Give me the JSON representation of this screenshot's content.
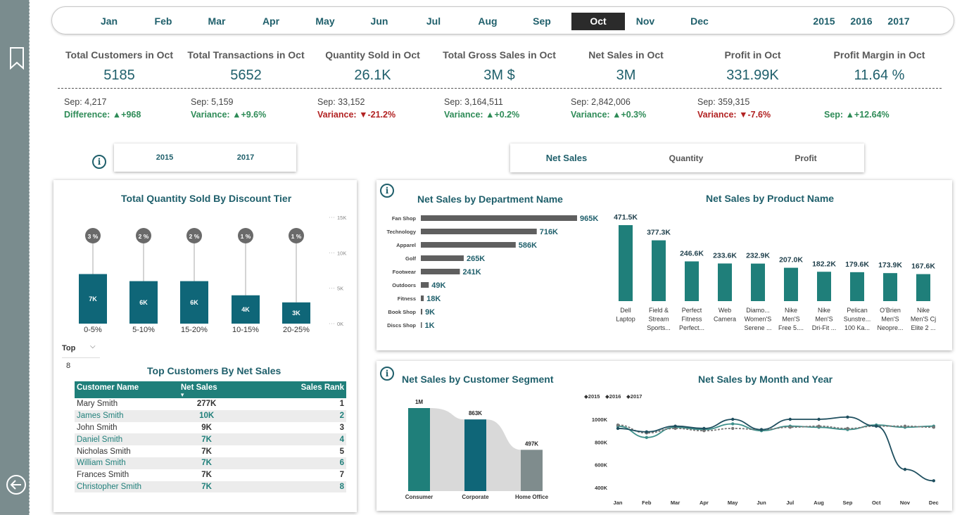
{
  "months": {
    "items": [
      "Jan",
      "Feb",
      "Mar",
      "Apr",
      "May",
      "Jun",
      "Jul",
      "Aug",
      "Sep",
      "Oct",
      "Nov",
      "Dec"
    ],
    "selected": "Oct",
    "years": [
      "2015",
      "2016",
      "2017"
    ]
  },
  "kpis": [
    {
      "label": "Total Customers in Oct",
      "value": "5185",
      "prev": "Sep: 4,217",
      "change_label": "Difference:",
      "change": "▲+968",
      "trend": "pos"
    },
    {
      "label": "Total Transactions in Oct",
      "value": "5652",
      "prev": "Sep: 5,159",
      "change_label": "Variance:",
      "change": "▲+9.6%",
      "trend": "pos"
    },
    {
      "label": "Quantity Sold in Oct",
      "value": "26.1K",
      "prev": "Sep: 33,152",
      "change_label": "Variance:",
      "change": "▼-21.2%",
      "trend": "neg"
    },
    {
      "label": "Total Gross Sales in Oct",
      "value": "3M $",
      "prev": "Sep: 3,164,511",
      "change_label": "Variance:",
      "change": "▲+0.2%",
      "trend": "pos"
    },
    {
      "label": "Net Sales in Oct",
      "value": "3M",
      "prev": "Sep: 2,842,006",
      "change_label": "Variance:",
      "change": "▲+0.3%",
      "trend": "pos"
    },
    {
      "label": "Profit in Oct",
      "value": "331.99K",
      "prev": "Sep: 359,315",
      "change_label": "Variance:",
      "change": "▼-7.6%",
      "trend": "neg"
    },
    {
      "label": "Profit Margin in Oct",
      "value": "11.64 %",
      "prev": "",
      "change_label": "Sep:",
      "change": "▲+12.64%",
      "trend": "pos"
    }
  ],
  "year_slicer": [
    "2015",
    "2017"
  ],
  "measure_slicer": [
    "Net Sales",
    "Quantity",
    "Profit"
  ],
  "discount_chart": {
    "title": "Total Quantity Sold By Discount Tier",
    "top_label": "Top",
    "top_value": "8",
    "chart_data": {
      "type": "bar",
      "categories": [
        "0-5%",
        "5-10%",
        "15-20%",
        "10-15%",
        "20-25%"
      ],
      "values": [
        7000,
        6000,
        6000,
        4000,
        3000
      ],
      "data_labels": [
        "7K",
        "6K",
        "6K",
        "4K",
        "3K"
      ],
      "bubble_labels": [
        "3 %",
        "2 %",
        "2 %",
        "1 %",
        "1 %"
      ],
      "yticks": [
        "15K",
        "10K",
        "5K",
        "0K"
      ],
      "ylim": [
        0,
        15000
      ]
    }
  },
  "customers": {
    "title": "Top Customers By Net Sales",
    "headers": [
      "Customer Name",
      "Net Sales",
      "Sales Rank"
    ],
    "rows": [
      [
        "Mary Smith",
        "277K",
        "1"
      ],
      [
        "James Smith",
        "10K",
        "2"
      ],
      [
        "John Smith",
        "9K",
        "3"
      ],
      [
        "Daniel Smith",
        "7K",
        "4"
      ],
      [
        "Nicholas Smith",
        "7K",
        "5"
      ],
      [
        "William Smith",
        "7K",
        "6"
      ],
      [
        "Frances Smith",
        "7K",
        "7"
      ],
      [
        "Christopher Smith",
        "7K",
        "8"
      ]
    ]
  },
  "dept_chart": {
    "title": "Net Sales by Department Name",
    "chart_data": {
      "type": "bar",
      "orientation": "horizontal",
      "categories": [
        "Fan Shop",
        "Technology",
        "Apparel",
        "Golf",
        "Footwear",
        "Outdoors",
        "Fitness",
        "Book Shop",
        "Discs Shop"
      ],
      "values": [
        965,
        716,
        586,
        265,
        241,
        49,
        18,
        9,
        1
      ],
      "data_labels": [
        "965K",
        "716K",
        "586K",
        "265K",
        "241K",
        "49K",
        "18K",
        "9K",
        "1K"
      ]
    }
  },
  "product_chart": {
    "title": "Net Sales by Product Name",
    "chart_data": {
      "type": "bar",
      "categories": [
        [
          "Dell",
          "Laptop"
        ],
        [
          "Field &",
          "Stream",
          "Sports..."
        ],
        [
          "Perfect",
          "Fitness",
          "Perfect..."
        ],
        [
          "Web",
          "Camera"
        ],
        [
          "Diamo...",
          "Women'S",
          "Serene ..."
        ],
        [
          "Nike",
          "Men'S",
          "Free 5...."
        ],
        [
          "Nike",
          "Men'S",
          "Dri-Fit ..."
        ],
        [
          "Pelican",
          "Sunstre...",
          "100 Ka..."
        ],
        [
          "O'Brien",
          "Men'S",
          "Neopre..."
        ],
        [
          "Nike",
          "Men'S Cj",
          "Elite 2 ..."
        ]
      ],
      "values": [
        471.5,
        377.3,
        246.6,
        233.6,
        232.9,
        207.0,
        182.2,
        179.6,
        173.9,
        167.6
      ],
      "data_labels": [
        "471.5K",
        "377.3K",
        "246.6K",
        "233.6K",
        "232.9K",
        "207.0K",
        "182.2K",
        "179.6K",
        "173.9K",
        "167.6K"
      ]
    }
  },
  "segment_chart": {
    "title": "Net Sales by Customer Segment",
    "chart_data": {
      "type": "bar",
      "categories": [
        "Consumer",
        "Corporate",
        "Home Office"
      ],
      "values": [
        1000,
        863,
        497
      ],
      "data_labels": [
        "1M",
        "863K",
        "497K"
      ]
    }
  },
  "month_year_chart": {
    "title": "Net Sales by Month and Year",
    "chart_data": {
      "type": "line",
      "categories": [
        "Jan",
        "Feb",
        "Mar",
        "Apr",
        "May",
        "Jun",
        "Jul",
        "Aug",
        "Sep",
        "Oct",
        "Nov",
        "Dec"
      ],
      "yticks": [
        "1000K",
        "800K",
        "600K",
        "400K"
      ],
      "ylim": [
        400,
        1000
      ],
      "series": [
        {
          "name": "2015",
          "values": [
            940,
            840,
            930,
            910,
            960,
            900,
            940,
            930,
            910,
            950,
            930,
            940
          ]
        },
        {
          "name": "2016",
          "values": [
            950,
            880,
            920,
            900,
            920,
            910,
            930,
            940,
            920,
            940,
            940,
            930
          ]
        },
        {
          "name": "2017",
          "values": [
            920,
            890,
            940,
            920,
            1000,
            910,
            1000,
            1000,
            1020,
            940,
            560,
            460
          ]
        }
      ]
    }
  },
  "colors": {
    "teal": "#1f7f7a",
    "teal_dark": "#0f6678",
    "bar_gray": "#5f5f5f",
    "accent_text": "#1f5f6b",
    "positive": "#2e8b57",
    "negative": "#b22222"
  }
}
